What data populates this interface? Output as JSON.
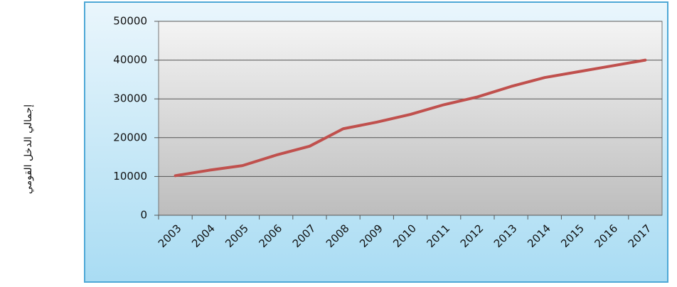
{
  "chart_data": {
    "type": "line",
    "y_label": "إجمالي الدخل القومي",
    "categories": [
      "2003",
      "2004",
      "2005",
      "2006",
      "2007",
      "2008",
      "2009",
      "2010",
      "2011",
      "2012",
      "2013",
      "2014",
      "2015",
      "2016",
      "2017"
    ],
    "values": [
      10200,
      11600,
      12800,
      15500,
      17800,
      22300,
      24000,
      26000,
      28500,
      30500,
      33200,
      35500,
      37000,
      38500,
      40000
    ],
    "color": "#c0504d",
    "ylim": [
      0,
      50000
    ],
    "yticks": [
      0,
      10000,
      20000,
      30000,
      40000,
      50000
    ],
    "grid": true
  }
}
